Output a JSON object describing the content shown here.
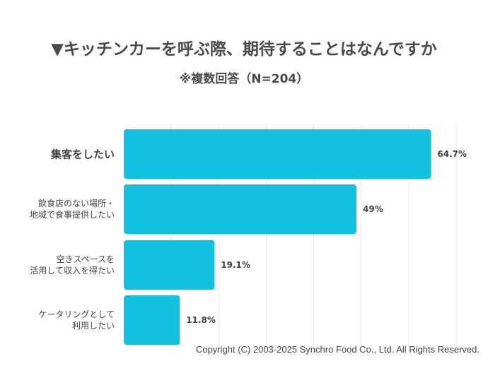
{
  "header": {
    "title": "▼キッチンカーを呼ぶ際、期待することはなんですか",
    "subtitle": "※複数回答（N=204）"
  },
  "chart_data": {
    "type": "bar",
    "orientation": "horizontal",
    "categories": [
      [
        "集客をしたい"
      ],
      [
        "飲食店のない場所・",
        "地域で食事提供したい"
      ],
      [
        "空きスペースを",
        "活用して収入を得たい"
      ],
      [
        "ケータリングとして",
        "利用したい"
      ]
    ],
    "values": [
      64.7,
      49,
      19.1,
      11.8
    ],
    "value_labels": [
      "64.7%",
      "49%",
      "19.1%",
      "11.8%"
    ],
    "xlim": [
      0,
      70
    ],
    "grid": true,
    "bar_color": "#12c1e0",
    "grid_color": "#e6e6e6"
  },
  "footer": {
    "copyright": "Copyright (C) 2003-2025  Synchro Food Co., Ltd. All Rights Reserved."
  }
}
